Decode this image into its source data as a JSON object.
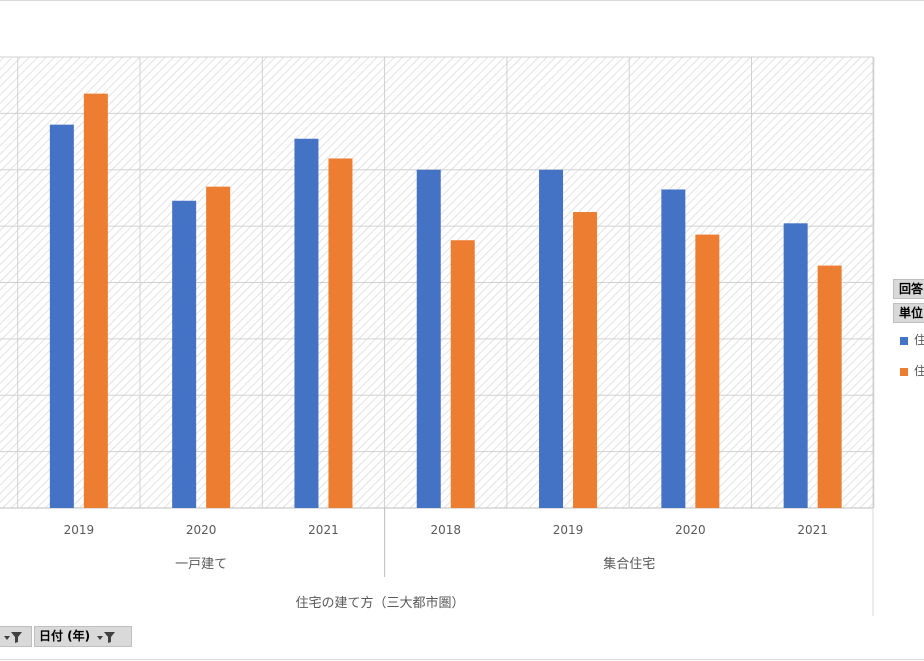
{
  "chart_data": {
    "type": "bar",
    "groups": [
      {
        "label": "一戸建て",
        "categories": [
          "2019",
          "2020",
          "2021"
        ]
      },
      {
        "label": "集合住宅",
        "categories": [
          "2018",
          "2019",
          "2020",
          "2021"
        ]
      }
    ],
    "categories": [
      "2019",
      "2020",
      "2021",
      "2018",
      "2019",
      "2020",
      "2021"
    ],
    "series": [
      {
        "values": [
          6.8,
          5.45,
          6.55,
          6.0,
          6.0,
          5.65,
          5.05
        ],
        "color": "#4472C4"
      },
      {
        "values": [
          7.35,
          5.7,
          6.2,
          4.75,
          5.25,
          4.85,
          4.3
        ],
        "color": "#ED7D31"
      }
    ],
    "ylim": [
      0,
      8
    ],
    "grid": true,
    "xlabel": "住宅の建て方（三大都市圏）",
    "legend_position": "right"
  },
  "pivot": {
    "field1": "回答",
    "field2": "単位",
    "legend_items": [
      {
        "label": "住",
        "color": "#4472C4"
      },
      {
        "label": "住",
        "color": "#ED7D31"
      }
    ]
  },
  "filters": {
    "left_button_label": "",
    "date_button_label": "日付 (年)"
  },
  "icons": {
    "filter": "filter-dropdown-icon"
  }
}
